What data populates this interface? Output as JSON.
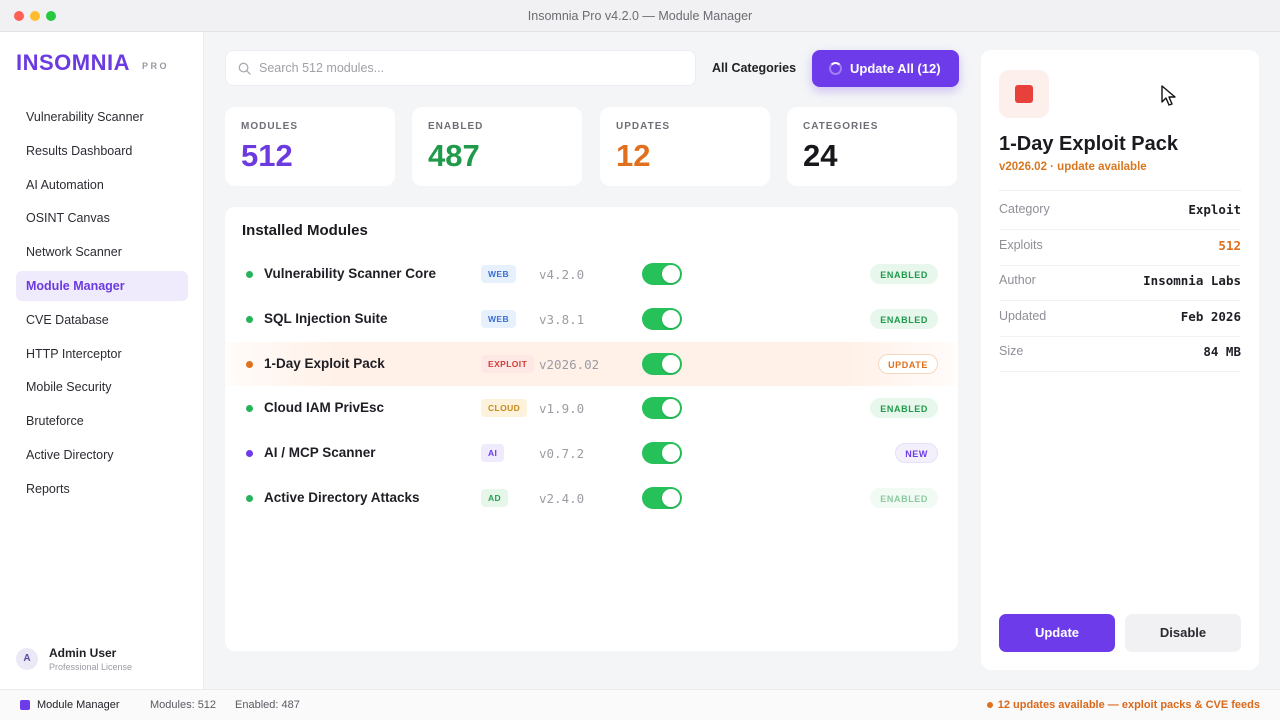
{
  "window": {
    "title": "Insomnia Pro v4.2.0 — Module Manager"
  },
  "sidebar": {
    "brand": "INSOMNIA",
    "brand_tag": "PRO",
    "items": [
      {
        "label": "Vulnerability Scanner"
      },
      {
        "label": "Results Dashboard"
      },
      {
        "label": "AI Automation"
      },
      {
        "label": "OSINT Canvas"
      },
      {
        "label": "Network Scanner"
      },
      {
        "label": "Module Manager",
        "active": true
      },
      {
        "label": "CVE Database"
      },
      {
        "label": "HTTP Interceptor"
      },
      {
        "label": "Mobile Security"
      },
      {
        "label": "Bruteforce"
      },
      {
        "label": "Active Directory"
      },
      {
        "label": "Reports"
      }
    ],
    "user": {
      "initial": "A",
      "name": "Admin User",
      "license": "Professional License"
    }
  },
  "toolbar": {
    "search_placeholder": "Search 512 modules...",
    "category_filter": "All Categories",
    "update_all_label": "Update All (12)"
  },
  "stats": [
    {
      "label": "MODULES",
      "value": "512",
      "color": "#6c3be0"
    },
    {
      "label": "ENABLED",
      "value": "487",
      "color": "#1f9a4a"
    },
    {
      "label": "UPDATES",
      "value": "12",
      "color": "#e0701e"
    },
    {
      "label": "CATEGORIES",
      "value": "24",
      "color": "#17171c"
    }
  ],
  "modules": {
    "title": "Installed Modules",
    "rows": [
      {
        "name": "Vulnerability Scanner Core",
        "tag": "WEB",
        "version": "v4.2.0",
        "enabled": true,
        "status": "ENABLED",
        "dot": "#27b35a",
        "tag_bg": "#e6f1fd",
        "tag_fg": "#3a6fd0",
        "status_bg": "#e7f7ec",
        "status_fg": "#1f9a4a",
        "status_border": "#e7f7ec"
      },
      {
        "name": "SQL Injection Suite",
        "tag": "WEB",
        "version": "v3.8.1",
        "enabled": true,
        "status": "ENABLED",
        "dot": "#27b35a",
        "tag_bg": "#e6f1fd",
        "tag_fg": "#3a6fd0",
        "status_bg": "#e7f7ec",
        "status_fg": "#1f9a4a",
        "status_border": "#e7f7ec"
      },
      {
        "name": "1-Day Exploit Pack",
        "tag": "EXPLOIT",
        "version": "v2026.02",
        "enabled": true,
        "status": "UPDATE",
        "dot": "#e0701e",
        "tag_bg": "#fde8e6",
        "tag_fg": "#d23d36",
        "status_bg": "#ffffff",
        "status_fg": "#e0701e",
        "status_border": "#f6d7bd",
        "highlight": true
      },
      {
        "name": "Cloud IAM PrivEsc",
        "tag": "CLOUD",
        "version": "v1.9.0",
        "enabled": true,
        "status": "ENABLED",
        "dot": "#27b35a",
        "tag_bg": "#fdf3dd",
        "tag_fg": "#c7891a",
        "status_bg": "#e7f7ec",
        "status_fg": "#1f9a4a",
        "status_border": "#e7f7ec"
      },
      {
        "name": "AI / MCP Scanner",
        "tag": "AI",
        "version": "v0.7.2",
        "enabled": true,
        "status": "NEW",
        "dot": "#6d3bea",
        "tag_bg": "#efeafc",
        "tag_fg": "#6d3bea",
        "status_bg": "#f3f0fb",
        "status_fg": "#6d3bea",
        "status_border": "#e6e0f8"
      },
      {
        "name": "Active Directory Attacks",
        "tag": "AD",
        "version": "v2.4.0",
        "enabled": true,
        "status": "ENABLED",
        "dot": "#27b35a",
        "tag_bg": "#e6f7ea",
        "tag_fg": "#2a9d52",
        "status_bg": "#f1faf3",
        "status_fg": "#8ccaa0",
        "status_border": "#f1faf3"
      }
    ]
  },
  "detail": {
    "icon": "stop-square-icon",
    "title": "1-Day Exploit Pack",
    "subtitle": "v2026.02 · update available",
    "props": [
      {
        "label": "Category",
        "value": "Exploit",
        "color": "#1e1e25"
      },
      {
        "label": "Exploits",
        "value": "512",
        "color": "#e0701e"
      },
      {
        "label": "Author",
        "value": "Insomnia Labs",
        "color": "#1e1e25"
      },
      {
        "label": "Updated",
        "value": "Feb 2026",
        "color": "#1e1e25"
      },
      {
        "label": "Size",
        "value": "84 MB",
        "color": "#1e1e25"
      }
    ],
    "update_label": "Update",
    "disable_label": "Disable"
  },
  "statusbar": {
    "module": "Module Manager",
    "modules": "Modules: 512",
    "enabled": "Enabled: 487",
    "updates": "12 updates available — exploit packs & CVE feeds"
  },
  "colors": {
    "accent": "#6d3bea",
    "warning": "#e0701e",
    "success": "#27c15a",
    "danger": "#e8403a"
  }
}
